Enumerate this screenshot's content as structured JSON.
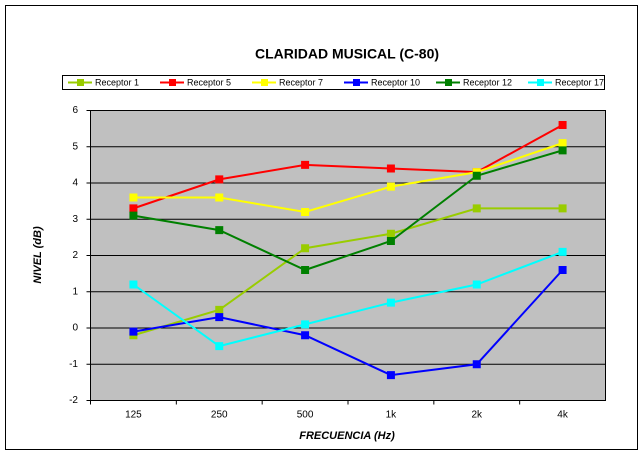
{
  "chart_data": {
    "type": "line",
    "title": "CLARIDAD MUSICAL (C-80)",
    "x_label": "FRECUENCIA (Hz)",
    "y_label": "NIVEL (dB)",
    "categories": [
      "125",
      "250",
      "500",
      "1k",
      "2k",
      "4k"
    ],
    "series": [
      {
        "name": "Receptor 1",
        "color": "#99cc00",
        "values": [
          -0.2,
          0.5,
          2.2,
          2.6,
          3.3,
          3.3
        ]
      },
      {
        "name": "Receptor 5",
        "color": "#ff0000",
        "values": [
          3.3,
          4.1,
          4.5,
          4.4,
          4.3,
          5.6
        ]
      },
      {
        "name": "Receptor 7",
        "color": "#ffff00",
        "values": [
          3.6,
          3.6,
          3.2,
          3.9,
          4.3,
          5.1
        ]
      },
      {
        "name": "Receptor 10",
        "color": "#0000ff",
        "values": [
          -0.1,
          0.3,
          -0.2,
          -1.3,
          -1.0,
          1.6
        ]
      },
      {
        "name": "Receptor 12",
        "color": "#008000",
        "values": [
          3.1,
          2.7,
          1.6,
          2.4,
          4.2,
          4.9
        ]
      },
      {
        "name": "Receptor 17",
        "color": "#00ffff",
        "values": [
          1.2,
          -0.5,
          0.1,
          0.7,
          1.2,
          2.1
        ]
      }
    ],
    "ylim": [
      -2,
      6
    ],
    "yticks": [
      -2,
      -1,
      0,
      1,
      2,
      3,
      4,
      5,
      6
    ],
    "grid": true,
    "legend": "top"
  }
}
